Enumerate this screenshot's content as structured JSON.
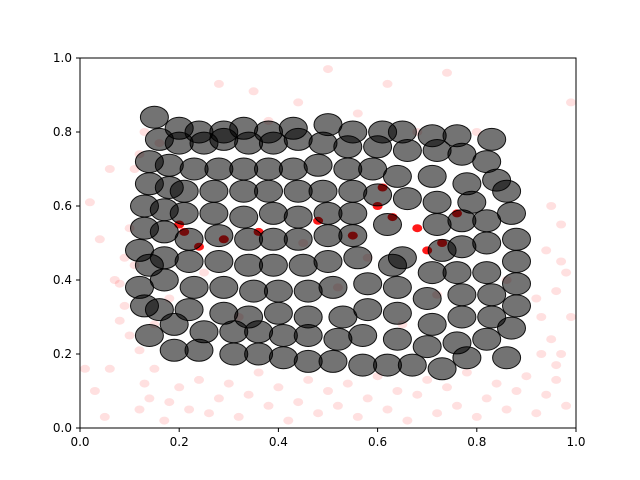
{
  "chart_data": {
    "type": "scatter",
    "title": "",
    "xlabel": "",
    "ylabel": "",
    "xlim": [
      0,
      1
    ],
    "ylim": [
      0,
      1
    ],
    "grid": false,
    "x_ticks": [
      "0.0",
      "0.2",
      "0.4",
      "0.6",
      "0.8",
      "1.0"
    ],
    "y_ticks": [
      "0.0",
      "0.2",
      "0.4",
      "0.6",
      "0.8",
      "1.0"
    ],
    "series": [
      {
        "name": "background",
        "color": "#ff0000",
        "alpha": 0.12,
        "marker_size": "small",
        "points": [
          [
            0.01,
            0.16
          ],
          [
            0.03,
            0.1
          ],
          [
            0.05,
            0.03
          ],
          [
            0.02,
            0.61
          ],
          [
            0.04,
            0.51
          ],
          [
            0.06,
            0.7
          ],
          [
            0.07,
            0.4
          ],
          [
            0.08,
            0.39
          ],
          [
            0.09,
            0.33
          ],
          [
            0.1,
            0.25
          ],
          [
            0.12,
            0.05
          ],
          [
            0.13,
            0.12
          ],
          [
            0.14,
            0.08
          ],
          [
            0.15,
            0.16
          ],
          [
            0.17,
            0.02
          ],
          [
            0.18,
            0.07
          ],
          [
            0.2,
            0.11
          ],
          [
            0.22,
            0.05
          ],
          [
            0.24,
            0.13
          ],
          [
            0.26,
            0.04
          ],
          [
            0.28,
            0.08
          ],
          [
            0.3,
            0.12
          ],
          [
            0.32,
            0.03
          ],
          [
            0.34,
            0.09
          ],
          [
            0.36,
            0.15
          ],
          [
            0.38,
            0.06
          ],
          [
            0.4,
            0.11
          ],
          [
            0.42,
            0.02
          ],
          [
            0.44,
            0.07
          ],
          [
            0.46,
            0.13
          ],
          [
            0.48,
            0.04
          ],
          [
            0.5,
            0.1
          ],
          [
            0.52,
            0.06
          ],
          [
            0.54,
            0.12
          ],
          [
            0.56,
            0.03
          ],
          [
            0.58,
            0.08
          ],
          [
            0.6,
            0.14
          ],
          [
            0.62,
            0.05
          ],
          [
            0.64,
            0.1
          ],
          [
            0.66,
            0.02
          ],
          [
            0.68,
            0.09
          ],
          [
            0.7,
            0.13
          ],
          [
            0.72,
            0.04
          ],
          [
            0.74,
            0.11
          ],
          [
            0.76,
            0.06
          ],
          [
            0.78,
            0.15
          ],
          [
            0.8,
            0.03
          ],
          [
            0.82,
            0.08
          ],
          [
            0.84,
            0.12
          ],
          [
            0.86,
            0.05
          ],
          [
            0.88,
            0.1
          ],
          [
            0.9,
            0.14
          ],
          [
            0.92,
            0.04
          ],
          [
            0.94,
            0.09
          ],
          [
            0.96,
            0.13
          ],
          [
            0.98,
            0.06
          ],
          [
            0.97,
            0.2
          ],
          [
            0.95,
            0.24
          ],
          [
            0.93,
            0.3
          ],
          [
            0.96,
            0.37
          ],
          [
            0.98,
            0.42
          ],
          [
            0.94,
            0.48
          ],
          [
            0.97,
            0.55
          ],
          [
            0.95,
            0.6
          ],
          [
            0.99,
            0.88
          ],
          [
            0.96,
            0.17
          ],
          [
            0.93,
            0.2
          ],
          [
            0.99,
            0.3
          ],
          [
            0.92,
            0.35
          ],
          [
            0.97,
            0.45
          ],
          [
            0.28,
            0.93
          ],
          [
            0.35,
            0.91
          ],
          [
            0.44,
            0.88
          ],
          [
            0.5,
            0.97
          ],
          [
            0.56,
            0.85
          ],
          [
            0.62,
            0.93
          ],
          [
            0.74,
            0.96
          ],
          [
            0.8,
            0.8
          ],
          [
            0.68,
            0.8
          ],
          [
            0.38,
            0.83
          ],
          [
            0.12,
            0.74
          ],
          [
            0.11,
            0.7
          ],
          [
            0.13,
            0.8
          ],
          [
            0.16,
            0.77
          ],
          [
            0.1,
            0.54
          ],
          [
            0.09,
            0.46
          ],
          [
            0.11,
            0.44
          ],
          [
            0.08,
            0.29
          ],
          [
            0.12,
            0.21
          ],
          [
            0.06,
            0.16
          ],
          [
            0.15,
            0.28
          ],
          [
            0.18,
            0.35
          ],
          [
            0.25,
            0.42
          ],
          [
            0.32,
            0.3
          ],
          [
            0.45,
            0.5
          ],
          [
            0.52,
            0.38
          ],
          [
            0.58,
            0.46
          ],
          [
            0.65,
            0.28
          ],
          [
            0.72,
            0.36
          ],
          [
            0.86,
            0.4
          ]
        ]
      },
      {
        "name": "highlight",
        "color": "#ff0000",
        "alpha": 0.9,
        "marker_size": "small",
        "points": [
          [
            0.2,
            0.55
          ],
          [
            0.21,
            0.53
          ],
          [
            0.24,
            0.49
          ],
          [
            0.29,
            0.51
          ],
          [
            0.36,
            0.53
          ],
          [
            0.48,
            0.56
          ],
          [
            0.55,
            0.52
          ],
          [
            0.6,
            0.6
          ],
          [
            0.63,
            0.57
          ],
          [
            0.68,
            0.54
          ],
          [
            0.7,
            0.48
          ],
          [
            0.73,
            0.5
          ],
          [
            0.76,
            0.58
          ],
          [
            0.61,
            0.65
          ]
        ]
      },
      {
        "name": "cluster",
        "color": "#000000",
        "alpha": 0.55,
        "marker_size": "large",
        "points": [
          [
            0.14,
            0.25
          ],
          [
            0.19,
            0.21
          ],
          [
            0.24,
            0.21
          ],
          [
            0.31,
            0.2
          ],
          [
            0.36,
            0.2
          ],
          [
            0.41,
            0.19
          ],
          [
            0.46,
            0.18
          ],
          [
            0.51,
            0.18
          ],
          [
            0.57,
            0.17
          ],
          [
            0.62,
            0.17
          ],
          [
            0.67,
            0.17
          ],
          [
            0.73,
            0.16
          ],
          [
            0.78,
            0.19
          ],
          [
            0.86,
            0.19
          ],
          [
            0.13,
            0.33
          ],
          [
            0.19,
            0.28
          ],
          [
            0.25,
            0.26
          ],
          [
            0.31,
            0.26
          ],
          [
            0.36,
            0.26
          ],
          [
            0.41,
            0.25
          ],
          [
            0.46,
            0.25
          ],
          [
            0.52,
            0.24
          ],
          [
            0.57,
            0.25
          ],
          [
            0.64,
            0.24
          ],
          [
            0.7,
            0.22
          ],
          [
            0.76,
            0.23
          ],
          [
            0.82,
            0.24
          ],
          [
            0.87,
            0.27
          ],
          [
            0.12,
            0.38
          ],
          [
            0.16,
            0.32
          ],
          [
            0.22,
            0.32
          ],
          [
            0.29,
            0.31
          ],
          [
            0.34,
            0.3
          ],
          [
            0.4,
            0.31
          ],
          [
            0.46,
            0.3
          ],
          [
            0.53,
            0.3
          ],
          [
            0.58,
            0.32
          ],
          [
            0.64,
            0.31
          ],
          [
            0.71,
            0.28
          ],
          [
            0.77,
            0.3
          ],
          [
            0.83,
            0.3
          ],
          [
            0.88,
            0.33
          ],
          [
            0.14,
            0.44
          ],
          [
            0.17,
            0.4
          ],
          [
            0.23,
            0.38
          ],
          [
            0.29,
            0.38
          ],
          [
            0.35,
            0.37
          ],
          [
            0.4,
            0.37
          ],
          [
            0.46,
            0.37
          ],
          [
            0.51,
            0.38
          ],
          [
            0.58,
            0.39
          ],
          [
            0.64,
            0.38
          ],
          [
            0.7,
            0.35
          ],
          [
            0.77,
            0.36
          ],
          [
            0.83,
            0.36
          ],
          [
            0.88,
            0.39
          ],
          [
            0.12,
            0.48
          ],
          [
            0.17,
            0.46
          ],
          [
            0.22,
            0.45
          ],
          [
            0.28,
            0.45
          ],
          [
            0.34,
            0.44
          ],
          [
            0.39,
            0.44
          ],
          [
            0.45,
            0.44
          ],
          [
            0.5,
            0.45
          ],
          [
            0.56,
            0.46
          ],
          [
            0.63,
            0.44
          ],
          [
            0.71,
            0.42
          ],
          [
            0.76,
            0.42
          ],
          [
            0.82,
            0.42
          ],
          [
            0.88,
            0.45
          ],
          [
            0.13,
            0.54
          ],
          [
            0.17,
            0.53
          ],
          [
            0.22,
            0.51
          ],
          [
            0.28,
            0.52
          ],
          [
            0.34,
            0.51
          ],
          [
            0.39,
            0.51
          ],
          [
            0.44,
            0.51
          ],
          [
            0.5,
            0.52
          ],
          [
            0.55,
            0.52
          ],
          [
            0.65,
            0.46
          ],
          [
            0.73,
            0.48
          ],
          [
            0.77,
            0.49
          ],
          [
            0.82,
            0.5
          ],
          [
            0.88,
            0.51
          ],
          [
            0.13,
            0.6
          ],
          [
            0.17,
            0.59
          ],
          [
            0.21,
            0.58
          ],
          [
            0.27,
            0.58
          ],
          [
            0.33,
            0.57
          ],
          [
            0.39,
            0.58
          ],
          [
            0.44,
            0.57
          ],
          [
            0.5,
            0.58
          ],
          [
            0.55,
            0.58
          ],
          [
            0.62,
            0.55
          ],
          [
            0.72,
            0.55
          ],
          [
            0.77,
            0.56
          ],
          [
            0.82,
            0.56
          ],
          [
            0.87,
            0.58
          ],
          [
            0.14,
            0.66
          ],
          [
            0.18,
            0.65
          ],
          [
            0.21,
            0.64
          ],
          [
            0.27,
            0.64
          ],
          [
            0.33,
            0.64
          ],
          [
            0.38,
            0.64
          ],
          [
            0.44,
            0.64
          ],
          [
            0.49,
            0.64
          ],
          [
            0.55,
            0.64
          ],
          [
            0.6,
            0.63
          ],
          [
            0.66,
            0.62
          ],
          [
            0.72,
            0.61
          ],
          [
            0.79,
            0.61
          ],
          [
            0.86,
            0.64
          ],
          [
            0.14,
            0.72
          ],
          [
            0.18,
            0.71
          ],
          [
            0.23,
            0.7
          ],
          [
            0.28,
            0.7
          ],
          [
            0.33,
            0.7
          ],
          [
            0.38,
            0.7
          ],
          [
            0.43,
            0.7
          ],
          [
            0.48,
            0.71
          ],
          [
            0.54,
            0.7
          ],
          [
            0.59,
            0.7
          ],
          [
            0.64,
            0.68
          ],
          [
            0.71,
            0.68
          ],
          [
            0.78,
            0.66
          ],
          [
            0.84,
            0.67
          ],
          [
            0.16,
            0.78
          ],
          [
            0.2,
            0.77
          ],
          [
            0.25,
            0.77
          ],
          [
            0.29,
            0.78
          ],
          [
            0.34,
            0.77
          ],
          [
            0.39,
            0.77
          ],
          [
            0.44,
            0.78
          ],
          [
            0.49,
            0.77
          ],
          [
            0.54,
            0.76
          ],
          [
            0.6,
            0.76
          ],
          [
            0.66,
            0.75
          ],
          [
            0.72,
            0.75
          ],
          [
            0.77,
            0.74
          ],
          [
            0.82,
            0.72
          ],
          [
            0.15,
            0.84
          ],
          [
            0.2,
            0.81
          ],
          [
            0.24,
            0.8
          ],
          [
            0.29,
            0.8
          ],
          [
            0.33,
            0.81
          ],
          [
            0.38,
            0.8
          ],
          [
            0.43,
            0.81
          ],
          [
            0.5,
            0.82
          ],
          [
            0.55,
            0.8
          ],
          [
            0.61,
            0.8
          ],
          [
            0.65,
            0.8
          ],
          [
            0.71,
            0.79
          ],
          [
            0.76,
            0.79
          ],
          [
            0.83,
            0.78
          ]
        ]
      }
    ]
  }
}
